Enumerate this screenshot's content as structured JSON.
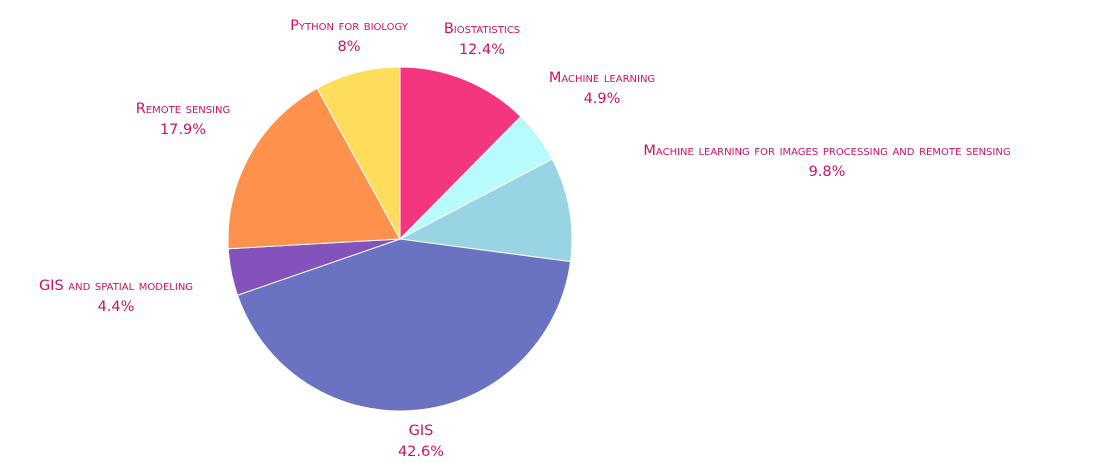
{
  "chart_data": {
    "type": "pie",
    "title": "",
    "label_color": "#d3115f",
    "slices": [
      {
        "label": "Biostatistics",
        "value": 12.4,
        "value_text": "12.4%",
        "color": "#f43580"
      },
      {
        "label": "Machine learning",
        "value": 4.9,
        "value_text": "4.9%",
        "color": "#b7fbfd"
      },
      {
        "label": "Machine learning for images processing and remote sensing",
        "value": 9.8,
        "value_text": "9.8%",
        "color": "#98d4e4"
      },
      {
        "label": "GIS",
        "value": 42.6,
        "value_text": "42.6%",
        "color": "#6b72c1"
      },
      {
        "label": "GIS and spatial modeling",
        "value": 4.4,
        "value_text": "4.4%",
        "color": "#8353bb"
      },
      {
        "label": "Remote sensing",
        "value": 17.9,
        "value_text": "17.9%",
        "color": "#fe924d"
      },
      {
        "label": "Python for biology",
        "value": 8,
        "value_text": "8%",
        "color": "#fedc5c"
      }
    ]
  }
}
